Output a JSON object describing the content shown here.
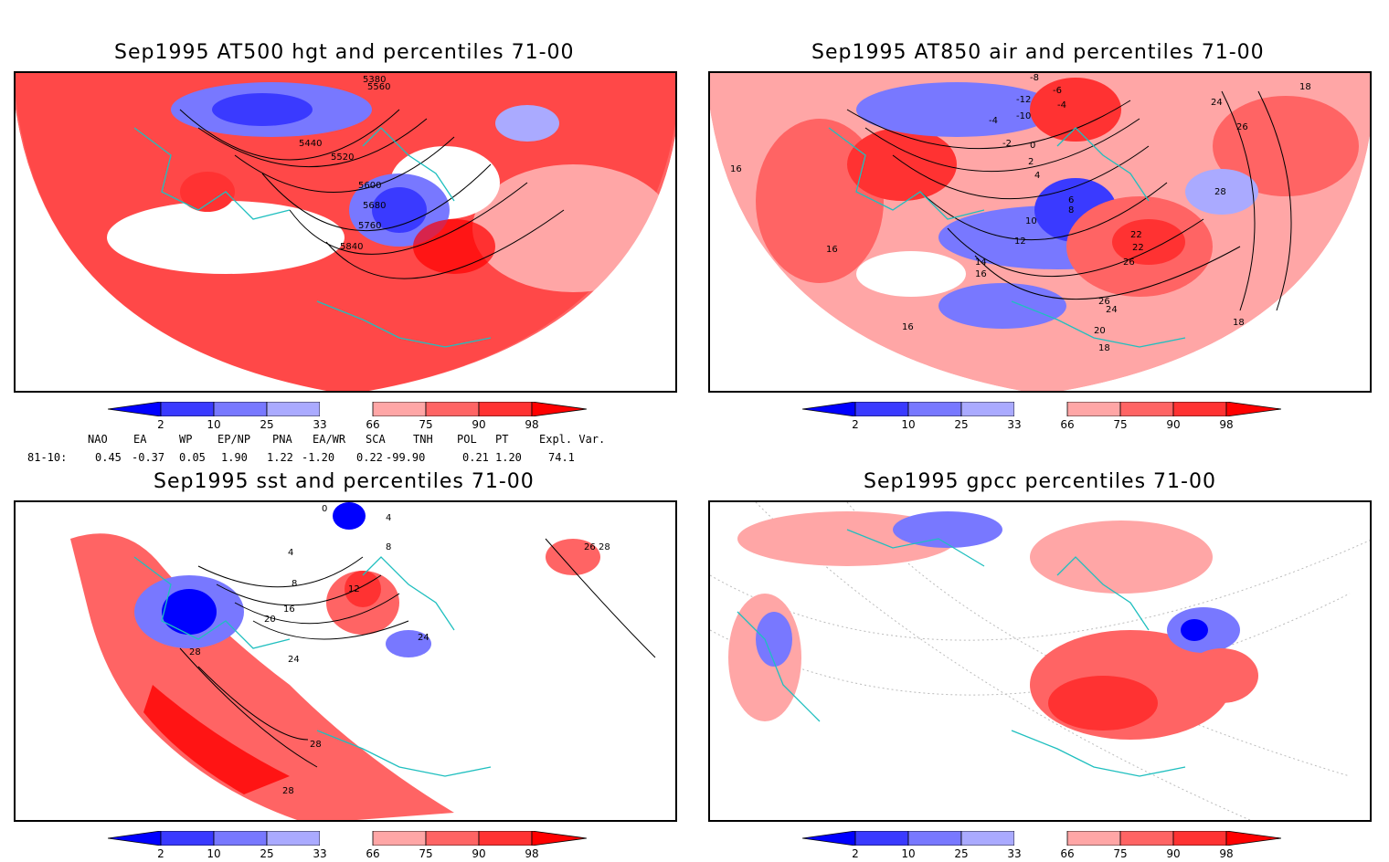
{
  "panels": [
    {
      "title": "Sep1995 AT500 hgt and percentiles 71-00",
      "contour_labels": [
        "5380",
        "5560",
        "5440",
        "5520",
        "5600",
        "5680",
        "5760",
        "5840"
      ]
    },
    {
      "title": "Sep1995 AT850 air and percentiles 71-00",
      "contour_labels": [
        "-8",
        "-6",
        "-12",
        "-4",
        "-10",
        "-4",
        "-2",
        "0",
        "2",
        "4",
        "6",
        "8",
        "10",
        "12",
        "14",
        "16",
        "16",
        "16",
        "16",
        "18",
        "18",
        "18",
        "20",
        "22",
        "22",
        "24",
        "24",
        "26",
        "26",
        "26",
        "28"
      ]
    },
    {
      "title": "Sep1995 sst and percentiles 71-00",
      "contour_labels": [
        "0",
        "4",
        "8",
        "12",
        "16",
        "20",
        "24",
        "24",
        "28",
        "28",
        "28",
        "28",
        "26",
        "4",
        "8"
      ]
    },
    {
      "title": "Sep1995 gpcc percentiles 71-00",
      "contour_labels": []
    }
  ],
  "colorbar": {
    "ticks": [
      "2",
      "10",
      "25",
      "33",
      "66",
      "75",
      "90",
      "98"
    ],
    "colors": [
      "#0000ff",
      "#3a3aff",
      "#7878ff",
      "#aaaaff",
      "#ffffff",
      "#ffa6a6",
      "#ff6464",
      "#ff3232",
      "#ff0000"
    ]
  },
  "indices": {
    "headers": [
      "NAO",
      "EA",
      "WP",
      "EP/NP",
      "PNA",
      "EA/WR",
      "SCA",
      "TNH",
      "POL",
      "PT",
      "Expl. Var."
    ],
    "row_label": "81-10:",
    "values": [
      "0.45",
      "-0.37",
      "0.05",
      "1.90",
      "1.22",
      "-1.20",
      "0.22",
      "-99.90",
      "0.21",
      "1.20",
      "74.1"
    ]
  }
}
